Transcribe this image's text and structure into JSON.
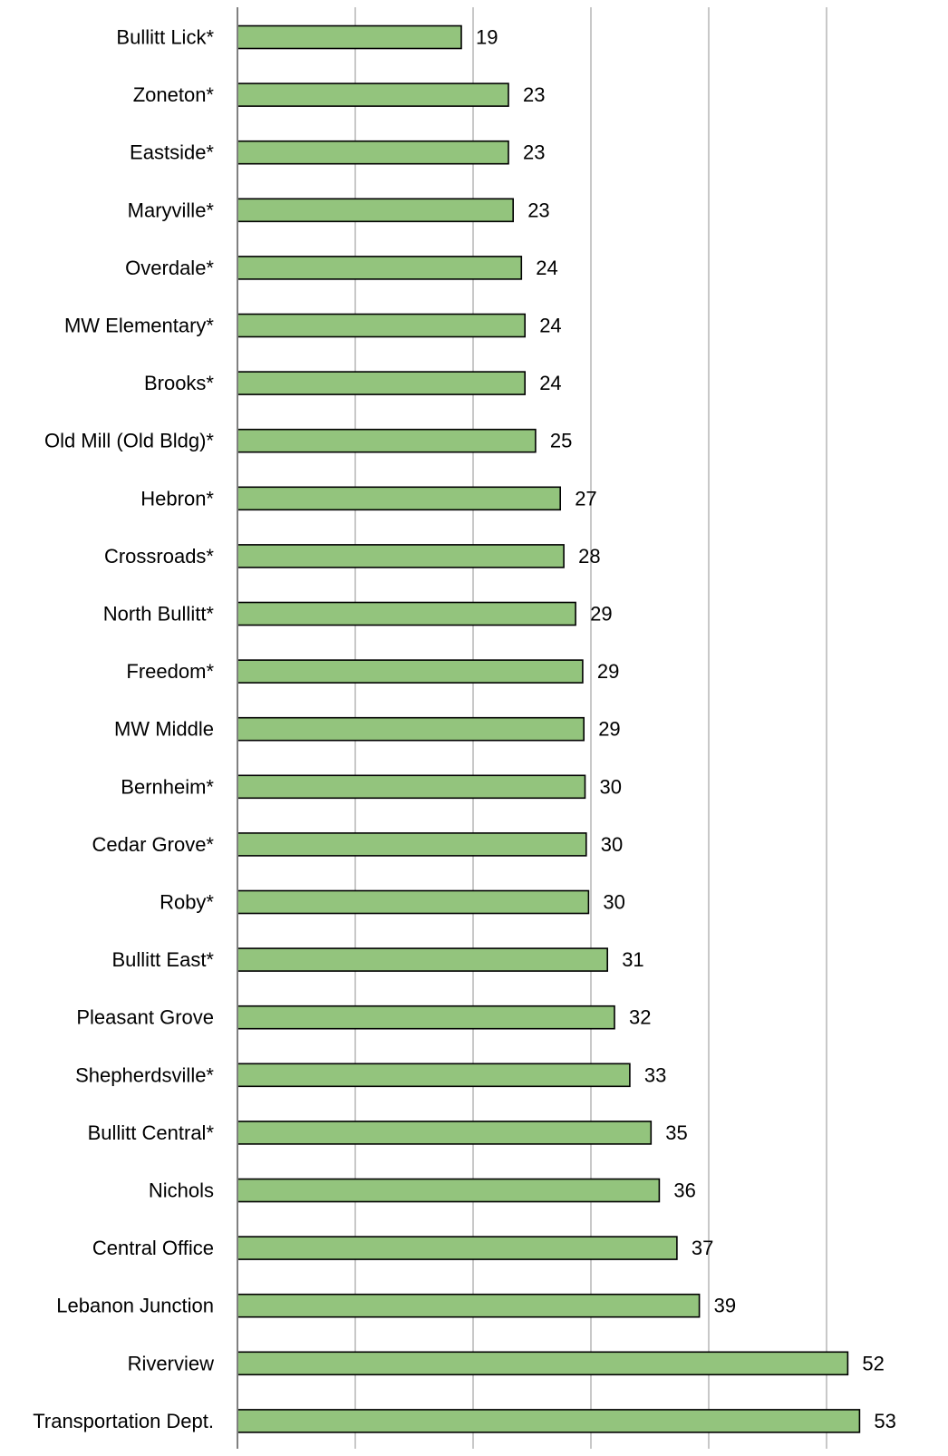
{
  "chart_data": {
    "type": "bar",
    "orientation": "horizontal",
    "categories": [
      "Bullitt Lick*",
      "Zoneton*",
      "Eastside*",
      "Maryville*",
      "Overdale*",
      "MW Elementary*",
      "Brooks*",
      "Old Mill (Old Bldg)*",
      "Hebron*",
      "Crossroads*",
      "North Bullitt*",
      "Freedom*",
      "MW Middle",
      "Bernheim*",
      "Cedar Grove*",
      "Roby*",
      "Bullitt East*",
      "Pleasant Grove",
      "Shepherdsville*",
      "Bullitt Central*",
      "Nichols",
      "Central Office",
      "Lebanon Junction",
      "Riverview",
      "Transportation Dept."
    ],
    "values": [
      19,
      23,
      23,
      23.4,
      24.1,
      24.4,
      24.4,
      25.3,
      27.4,
      27.7,
      28.7,
      29.3,
      29.4,
      29.5,
      29.6,
      29.8,
      31.4,
      32,
      33.3,
      35.1,
      35.8,
      37.3,
      39.2,
      51.8,
      52.8
    ],
    "value_labels": [
      "19",
      "23",
      "23",
      "23",
      "24",
      "24",
      "24",
      "25",
      "27",
      "28",
      "29",
      "29",
      "29",
      "30",
      "30",
      "30",
      "31",
      "32",
      "33",
      "35",
      "36",
      "37",
      "39",
      "52",
      "53"
    ],
    "xlim": [
      0,
      60
    ],
    "grid": true,
    "colors": {
      "bar_fill": "#93c47d",
      "bar_stroke": "#000000",
      "grid": "#c8c8c8",
      "axis": "#808080"
    }
  }
}
